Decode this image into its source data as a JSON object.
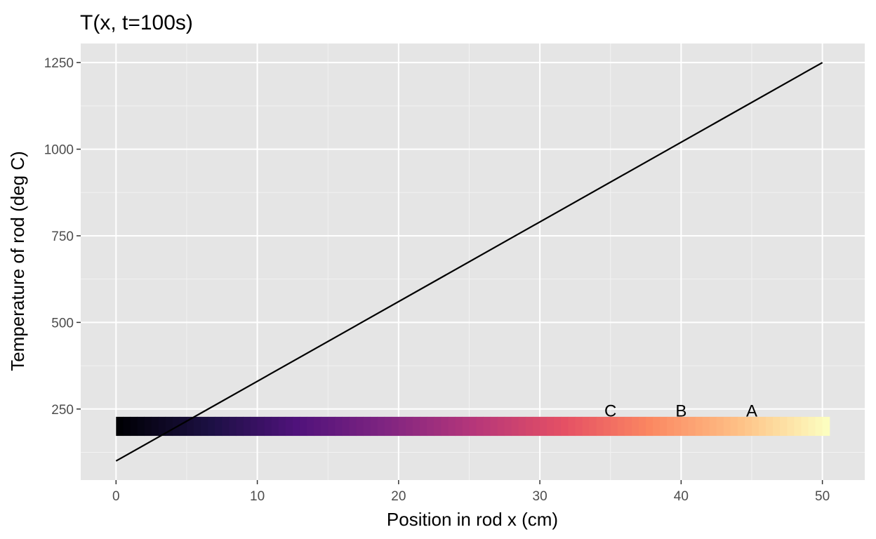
{
  "chart_data": {
    "type": "line",
    "title": "T(x, t=100s)",
    "xlabel": "Position in rod x (cm)",
    "ylabel": "Temperature of rod (deg C)",
    "xlim": [
      -2.5,
      53
    ],
    "ylim": [
      45,
      1305
    ],
    "x_ticks": [
      0,
      10,
      20,
      30,
      40,
      50
    ],
    "y_ticks": [
      250,
      500,
      750,
      1000,
      1250
    ],
    "x_minor": [
      5,
      15,
      25,
      35,
      45
    ],
    "y_minor": [
      125,
      375,
      625,
      875,
      1125
    ],
    "grid": true,
    "series": [
      {
        "x": [
          0,
          50
        ],
        "y": [
          100,
          1250
        ],
        "color": "#000000"
      }
    ],
    "rod_strip": {
      "x_start": 0,
      "x_end": 50.5,
      "cells": 101,
      "y_center": 200,
      "y_height": 55,
      "colormap": "magma"
    },
    "annotations": [
      {
        "text": "C",
        "x": 35,
        "y": 245
      },
      {
        "text": "B",
        "x": 40,
        "y": 245
      },
      {
        "text": "A",
        "x": 45,
        "y": 245
      }
    ],
    "colors": {
      "panel_background": "#e5e5e5",
      "grid_major": "#ffffff",
      "grid_minor": "#f2f2f2",
      "tick_color": "#333333"
    }
  }
}
